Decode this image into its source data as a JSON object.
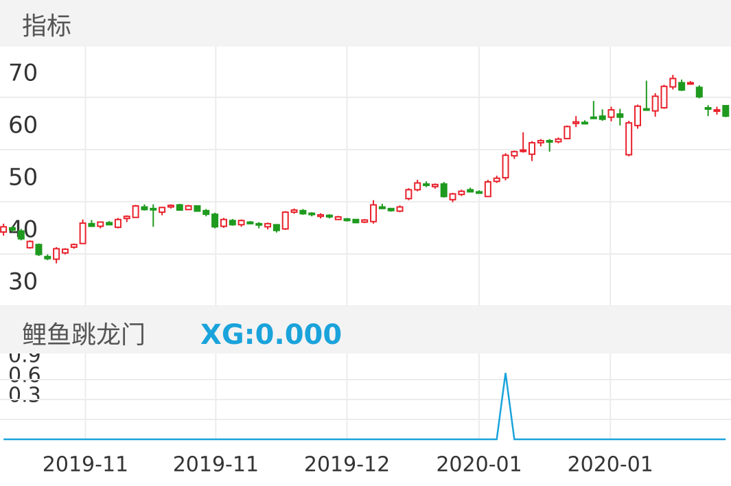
{
  "header": {
    "title": "指标"
  },
  "chart_data": [
    {
      "type": "candlestick",
      "open": [
        44.2,
        45,
        44.4,
        41.2,
        41.8,
        39.5,
        39,
        40.2,
        41.3,
        42,
        45.8,
        45.3,
        46,
        45.1,
        46.8,
        47,
        49,
        48.7,
        48,
        49,
        49.4,
        48.5,
        49.2,
        48.3,
        47.6,
        45.3,
        46.4,
        45.6,
        46.1,
        45.8,
        45.2,
        45.6,
        44.8,
        48,
        48.3,
        47.8,
        47.2,
        47.4,
        46.6,
        46.7,
        46.6,
        46.1,
        46.2,
        49,
        48.7,
        48.2,
        50.6,
        52.3,
        53.4,
        52.9,
        53.4,
        50.4,
        51.4,
        52.3,
        51.9,
        51,
        53.9,
        54.6,
        58.8,
        59.7,
        59.1,
        61.3,
        61.7,
        61.5,
        62.1,
        65,
        65.2,
        66.2,
        66.4,
        66.2,
        66.8,
        59,
        64.6,
        67.8,
        67.4,
        68,
        72,
        72.8,
        72.8,
        71.9,
        68,
        67.4,
        68.4
      ],
      "high": [
        45.8,
        45.3,
        44.8,
        42.6,
        42,
        39.9,
        41.3,
        41.1,
        42,
        46.6,
        46.5,
        46.2,
        46.3,
        46.9,
        47.4,
        49.4,
        49.5,
        49.5,
        49,
        49.5,
        49.6,
        49.4,
        49.3,
        48.6,
        47.9,
        46.9,
        46.7,
        46.6,
        46.3,
        46.1,
        46,
        45.6,
        48.2,
        48.7,
        48.6,
        48,
        47.8,
        47.6,
        47.3,
        46.9,
        46.7,
        46.7,
        50.3,
        49.6,
        48.8,
        49.3,
        52.6,
        54.2,
        53.9,
        53.5,
        53.8,
        51.7,
        52.3,
        52.7,
        52.2,
        54.2,
        55,
        59.3,
        59.8,
        63.3,
        61.6,
        62,
        62,
        62.3,
        64.6,
        66.4,
        65.6,
        69.3,
        67.7,
        68.2,
        67.8,
        65.5,
        68.6,
        73.2,
        70.8,
        72.4,
        74.3,
        73.4,
        73.1,
        72.3,
        68.5,
        68.2,
        68.5
      ],
      "low": [
        43.5,
        44.2,
        42.6,
        41,
        39.6,
        38.8,
        38.2,
        39.9,
        41,
        41.9,
        45.2,
        44.9,
        45.6,
        44.9,
        46.1,
        46.9,
        48.3,
        45.2,
        47.4,
        48.7,
        48.3,
        48.4,
        48.1,
        47.2,
        44.9,
        45,
        45.4,
        45.2,
        45.7,
        44.9,
        44.7,
        44.1,
        44.6,
        47.7,
        47.5,
        47.2,
        46.8,
        46.8,
        46.5,
        46.2,
        45.9,
        45.9,
        45.8,
        48.6,
        48.1,
        48,
        50.3,
        52,
        52.8,
        52.5,
        50.8,
        49.9,
        51.1,
        51.8,
        51.6,
        50.9,
        53.6,
        54.1,
        58.2,
        59.4,
        57.8,
        60.6,
        59.6,
        61.2,
        62,
        64.3,
        64.8,
        65.9,
        65.5,
        65.4,
        64.6,
        58.7,
        64,
        67.4,
        66.3,
        67.8,
        71.5,
        71.2,
        72.6,
        69.8,
        66.4,
        66.7,
        66.2
      ],
      "close": [
        45.2,
        44.6,
        42.9,
        42.4,
        39.9,
        39.1,
        41,
        40.9,
        41.8,
        45.9,
        45.3,
        46.1,
        45.6,
        46.6,
        47.2,
        49.2,
        48.5,
        48.6,
        48.9,
        49.3,
        48.4,
        49.2,
        48.2,
        47.6,
        45.2,
        46.6,
        45.6,
        46.4,
        45.8,
        45.7,
        45.8,
        44.5,
        48,
        48.4,
        47.7,
        47.6,
        47.5,
        47.1,
        47.1,
        46.4,
        46,
        46.5,
        49.4,
        48.7,
        48.3,
        49,
        52.3,
        53.6,
        53.2,
        53.3,
        51,
        51.5,
        52,
        51.9,
        51.8,
        53.8,
        54.5,
        58.9,
        59.6,
        59.9,
        61.3,
        61.7,
        61.6,
        62,
        64.4,
        65.3,
        65,
        66,
        65.8,
        67.6,
        66.2,
        65.1,
        68.3,
        67.7,
        70.2,
        72.1,
        73.6,
        71.4,
        72.8,
        70.1,
        67.8,
        67.6,
        66.4
      ],
      "up_color": "#e8212b",
      "down_color": "#1e9a1e",
      "ylim": [
        30,
        79.7
      ],
      "yticks": [
        30,
        40,
        50,
        60,
        70
      ],
      "xlim": [
        -0.4,
        82.6
      ],
      "xticks": [
        {
          "value": 9.3,
          "label": "2019-11"
        },
        {
          "value": 24.1,
          "label": "2019-11"
        },
        {
          "value": 39.0,
          "label": "2019-12"
        },
        {
          "value": 54.0,
          "label": "2020-01"
        },
        {
          "value": 68.9,
          "label": "2020-01"
        }
      ],
      "grid": true
    },
    {
      "type": "line",
      "title": "鲤鱼跳龙门",
      "annotation": "XG:0.000",
      "series": [
        {
          "color": "#1aa3db",
          "values": [
            0,
            0,
            0,
            0,
            0,
            0,
            0,
            0,
            0,
            0,
            0,
            0,
            0,
            0,
            0,
            0,
            0,
            0,
            0,
            0,
            0,
            0,
            0,
            0,
            0,
            0,
            0,
            0,
            0,
            0,
            0,
            0,
            0,
            0,
            0,
            0,
            0,
            0,
            0,
            0,
            0,
            0,
            0,
            0,
            0,
            0,
            0,
            0,
            0,
            0,
            0,
            0,
            0,
            0,
            0,
            0,
            0,
            1,
            0,
            0,
            0,
            0,
            0,
            0,
            0,
            0,
            0,
            0,
            0,
            0,
            0,
            0,
            0,
            0,
            0,
            0,
            0,
            0,
            0,
            0,
            0,
            0,
            0
          ]
        }
      ],
      "ylim": [
        0,
        1.2
      ],
      "yticks": [
        0.3,
        0.6,
        0.9
      ],
      "xlim": [
        -0.4,
        82.6
      ],
      "grid": true
    }
  ]
}
